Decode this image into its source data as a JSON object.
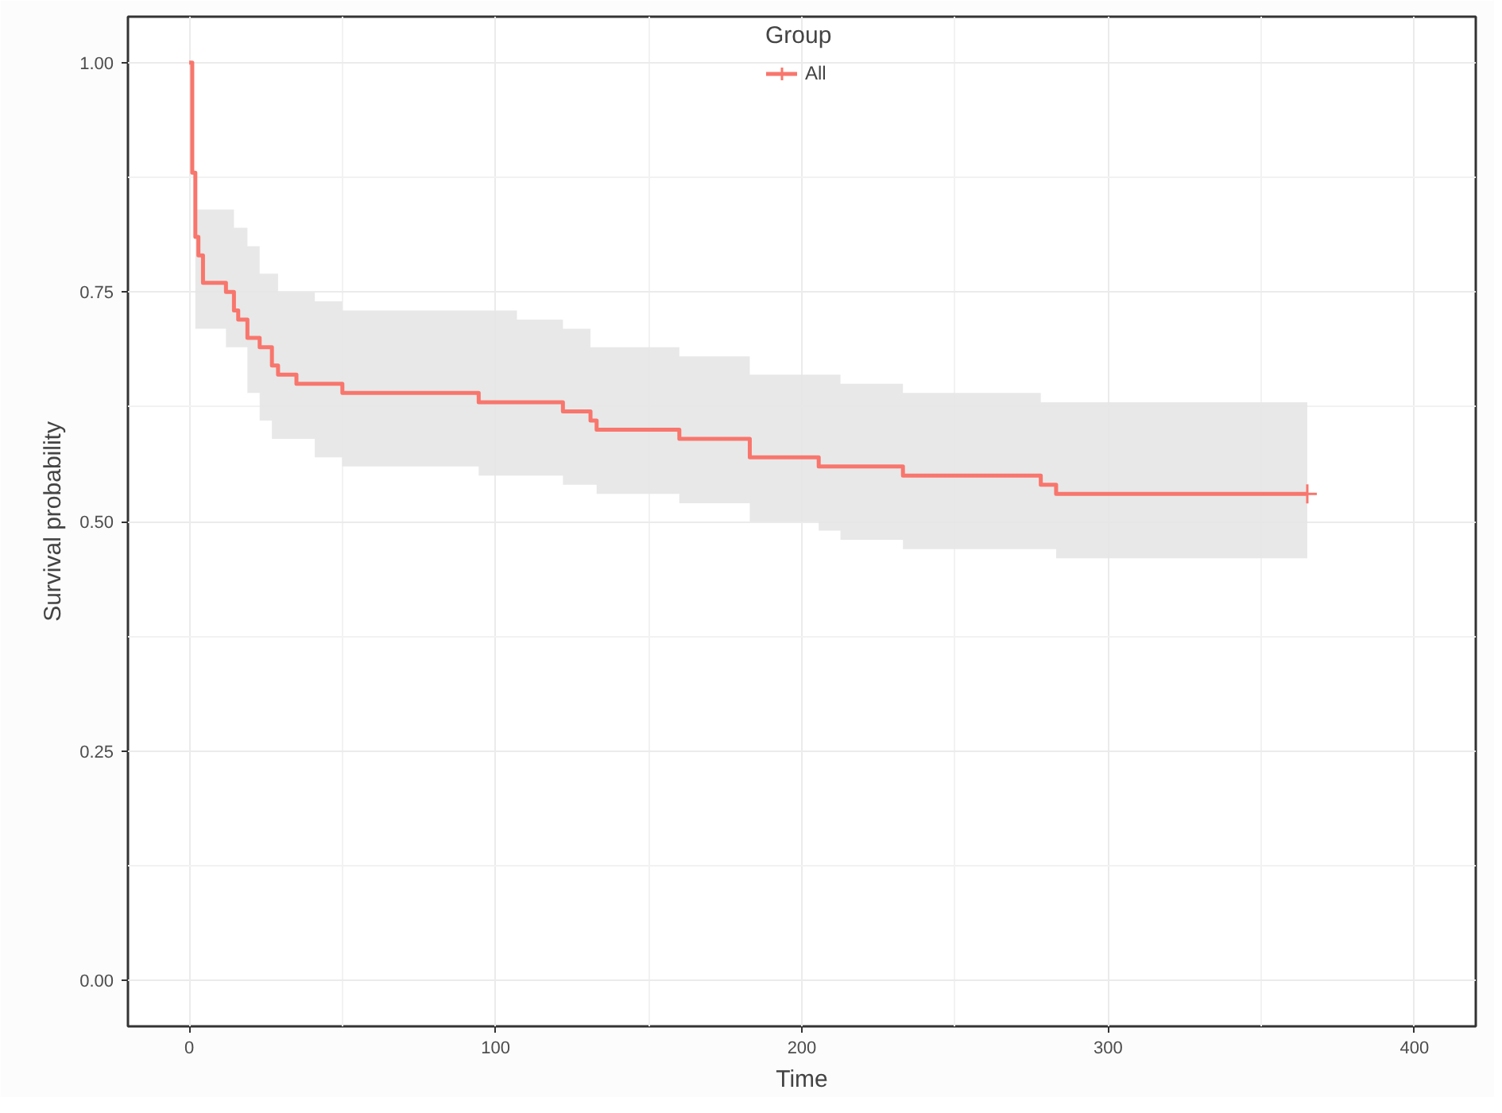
{
  "chart_data": {
    "type": "step",
    "xlabel": "Time",
    "ylabel": "Survival probability",
    "legend_title": "Group",
    "legend": "top",
    "grid": true,
    "xlim": [
      -20,
      420
    ],
    "xticks": [
      0,
      100,
      200,
      300,
      400
    ],
    "ylim": [
      -0.05,
      1.05
    ],
    "yticks": [
      {
        "value": 0,
        "label": "0.00"
      },
      {
        "value": 0.25,
        "label": "0.25"
      },
      {
        "value": 0.5,
        "label": "0.50"
      },
      {
        "value": 0.75,
        "label": "0.75"
      },
      {
        "value": 1,
        "label": "1.00"
      }
    ],
    "series": [
      {
        "name": "All",
        "color": "#f8766d",
        "x": [
          0,
          1,
          2,
          3,
          4.5,
          12,
          14.6,
          16,
          19,
          23,
          27,
          29,
          35,
          41,
          50,
          94.5,
          107,
          122,
          131,
          133,
          160,
          170,
          183,
          205.5,
          212.6,
          233,
          278,
          283,
          365
        ],
        "values": [
          1,
          0.88,
          0.81,
          0.79,
          0.76,
          0.75,
          0.73,
          0.72,
          0.7,
          0.69,
          0.67,
          0.66,
          0.65,
          0.65,
          0.64,
          0.63,
          0.63,
          0.62,
          0.61,
          0.6,
          0.59,
          0.59,
          0.57,
          0.56,
          0.56,
          0.55,
          0.54,
          0.53,
          0.53
        ],
        "upper": [
          null,
          null,
          0.84,
          0.84,
          0.84,
          0.84,
          0.82,
          0.82,
          0.8,
          0.77,
          0.77,
          0.75,
          0.75,
          0.74,
          0.73,
          0.73,
          0.72,
          0.71,
          0.69,
          0.69,
          0.68,
          0.68,
          0.66,
          0.66,
          0.65,
          0.64,
          0.63,
          0.63,
          0.63
        ],
        "lower": [
          null,
          null,
          0.71,
          0.71,
          0.71,
          0.69,
          0.69,
          0.69,
          0.64,
          0.61,
          0.59,
          0.59,
          0.59,
          0.57,
          0.56,
          0.55,
          0.55,
          0.54,
          0.54,
          0.53,
          0.52,
          0.52,
          0.5,
          0.49,
          0.48,
          0.47,
          0.47,
          0.46,
          0.46
        ]
      },
      {
        "type": "scatter",
        "marker": "cross",
        "color": "#f8766d",
        "x": [
          365
        ],
        "values": [
          0.53
        ]
      }
    ]
  }
}
